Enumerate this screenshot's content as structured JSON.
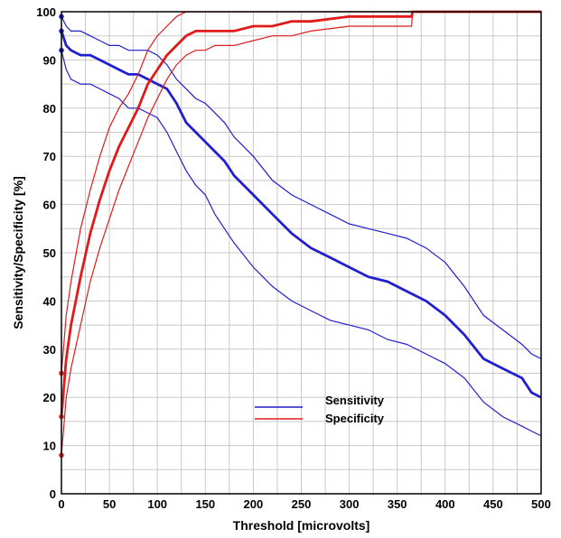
{
  "chart_data": {
    "type": "line",
    "xlabel": "Threshold [microvolts]",
    "ylabel": "Sensitivity/Specificity [%]",
    "xlim": [
      0,
      500
    ],
    "ylim": [
      0,
      100
    ],
    "xticks": [
      0,
      50,
      100,
      150,
      200,
      250,
      300,
      350,
      400,
      450,
      500
    ],
    "yticks": [
      0,
      10,
      20,
      30,
      40,
      50,
      60,
      70,
      80,
      90,
      100
    ],
    "grid": true,
    "legend_position": "lower-center",
    "series": [
      {
        "name": "Sensitivity",
        "color": "#1f1fd0",
        "x": [
          0,
          5,
          10,
          20,
          30,
          40,
          50,
          60,
          70,
          80,
          90,
          100,
          110,
          120,
          130,
          140,
          150,
          160,
          170,
          180,
          200,
          220,
          240,
          260,
          280,
          300,
          320,
          340,
          360,
          380,
          400,
          420,
          440,
          460,
          480,
          490,
          500
        ],
        "values": [
          96,
          93,
          92,
          91,
          91,
          90,
          89,
          88,
          87,
          87,
          86,
          85,
          84,
          81,
          77,
          75,
          73,
          71,
          69,
          66,
          62,
          58,
          54,
          51,
          49,
          47,
          45,
          44,
          42,
          40,
          37,
          33,
          28,
          26,
          24,
          21,
          20
        ],
        "ci_lower": [
          92,
          88,
          86,
          85,
          85,
          84,
          83,
          82,
          80,
          80,
          79,
          78,
          75,
          71,
          67,
          64,
          62,
          58,
          55,
          52,
          47,
          43,
          40,
          38,
          36,
          35,
          34,
          32,
          31,
          29,
          27,
          24,
          19,
          16,
          14,
          13,
          12
        ],
        "ci_upper": [
          99,
          97,
          96,
          96,
          95,
          94,
          93,
          93,
          92,
          92,
          92,
          91,
          89,
          86,
          84,
          82,
          81,
          79,
          77,
          74,
          70,
          65,
          62,
          60,
          58,
          56,
          55,
          54,
          53,
          51,
          48,
          43,
          37,
          34,
          31,
          29,
          28
        ]
      },
      {
        "name": "Specificity",
        "color": "#e01a1a",
        "x": [
          0,
          5,
          10,
          20,
          30,
          40,
          50,
          60,
          70,
          80,
          90,
          100,
          110,
          120,
          130,
          140,
          150,
          160,
          180,
          200,
          220,
          240,
          260,
          300,
          340,
          365,
          366,
          400,
          450,
          500
        ],
        "values": [
          16,
          28,
          35,
          45,
          54,
          61,
          67,
          72,
          76,
          80,
          85,
          88,
          91,
          93,
          95,
          96,
          96,
          96,
          96,
          97,
          97,
          98,
          98,
          99,
          99,
          99,
          100,
          100,
          100,
          100
        ],
        "ci_lower": [
          8,
          20,
          26,
          35,
          44,
          51,
          57,
          63,
          68,
          73,
          78,
          82,
          86,
          89,
          91,
          92,
          92,
          93,
          93,
          94,
          95,
          95,
          96,
          97,
          97,
          97,
          100,
          100,
          100,
          100
        ],
        "ci_upper": [
          25,
          37,
          44,
          55,
          63,
          70,
          76,
          80,
          83,
          87,
          92,
          95,
          97,
          99,
          100,
          100,
          100,
          100,
          100,
          100,
          100,
          100,
          100,
          100,
          100,
          100,
          100,
          100,
          100,
          100
        ]
      }
    ]
  }
}
